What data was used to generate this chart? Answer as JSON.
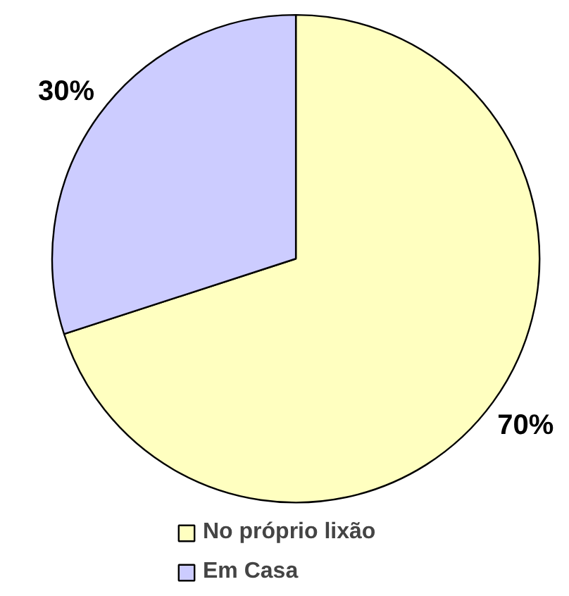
{
  "chart_data": {
    "type": "pie",
    "categories": [
      "No próprio lixão",
      "Em Casa"
    ],
    "values": [
      70,
      30
    ],
    "colors": [
      "#ffffc0",
      "#ccccff"
    ],
    "value_labels": [
      "70%",
      "30%"
    ],
    "legend": "bottom"
  }
}
